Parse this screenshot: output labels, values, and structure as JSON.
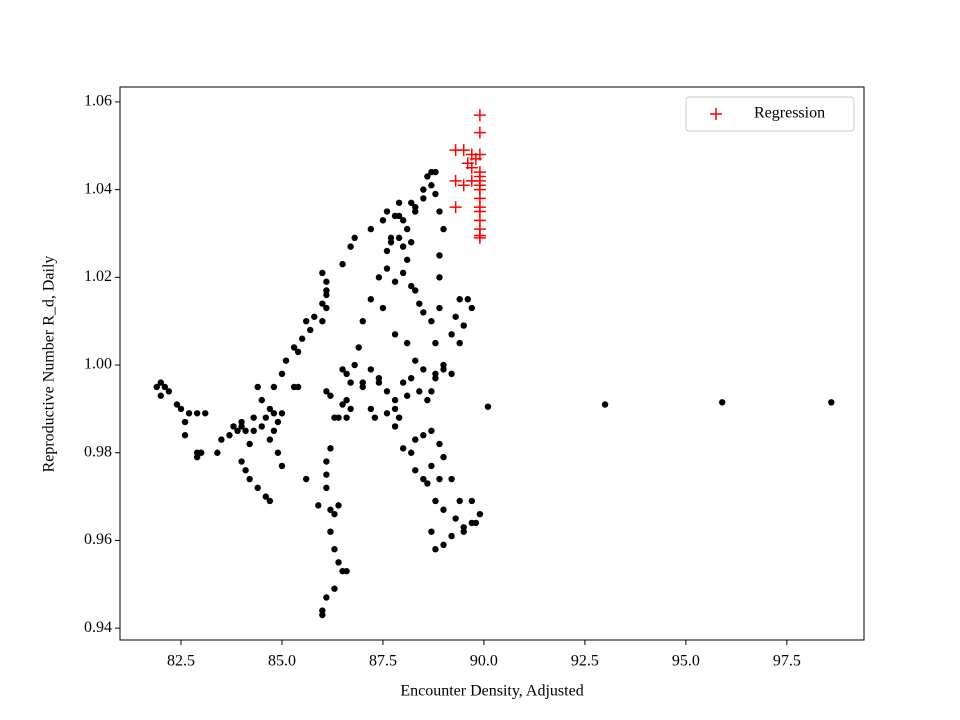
{
  "chart_data": {
    "type": "scatter",
    "xlabel": "Encounter Density, Adjusted",
    "ylabel": "Reproductive Number R_d, Daily",
    "xlim": [
      80.99,
      99.41
    ],
    "ylim": [
      0.9373,
      1.0634
    ],
    "xticks": [
      82.5,
      {
        "value": 85,
        "label": "85.0"
      },
      87.5,
      {
        "value": 90,
        "label": "90.0"
      },
      92.5,
      {
        "value": 95,
        "label": "95.0"
      },
      97.5
    ],
    "yticks": [
      0.94,
      0.96,
      0.98,
      {
        "value": 1,
        "label": "1.00"
      },
      1.02,
      1.04,
      1.06
    ],
    "legend": "upper right",
    "series": [
      {
        "color": "#000000",
        "marker": "dot",
        "x": [
          81.9,
          82.0,
          82.1,
          82.0,
          82.2,
          82.4,
          82.5,
          82.6,
          82.6,
          82.7,
          82.9,
          83.1,
          82.9,
          82.9,
          83.0,
          83.4,
          83.5,
          83.7,
          83.8,
          83.9,
          84.0,
          84.1,
          84.3,
          84.4,
          84.5,
          84.7,
          84.8,
          85.0,
          85.1,
          85.3,
          85.5,
          85.7,
          85.8,
          86.0,
          86.1,
          86.0,
          86.1,
          86.1,
          86.1,
          86.0,
          85.6,
          85.4,
          85.4,
          85.3,
          85.0,
          84.8,
          84.5,
          84.3,
          84.0,
          84.2,
          84.0,
          84.1,
          84.2,
          84.4,
          84.6,
          84.7,
          85.0,
          84.9,
          84.7,
          84.8,
          84.9,
          84.6,
          86.1,
          86.2,
          86.3,
          86.4,
          86.6,
          86.7,
          86.5,
          86.2,
          86.1,
          86.1,
          86.1,
          85.9,
          86.2,
          86.3,
          86.4,
          86.2,
          86.3,
          86.4,
          86.5,
          86.6,
          86.3,
          86.1,
          86.0,
          86.0,
          85.6,
          86.6,
          87.0,
          86.5,
          86.7,
          86.8,
          87.2,
          87.5,
          87.6,
          87.9,
          88.0,
          88.1,
          88.3,
          88.5,
          88.7,
          88.8,
          88.7,
          88.6,
          88.5,
          88.3,
          88.2,
          87.9,
          87.8,
          87.7,
          87.6,
          87.4,
          87.2,
          87.0,
          86.9,
          86.8,
          86.6,
          86.7,
          87.0,
          87.2,
          87.4,
          87.6,
          87.8,
          87.9,
          87.8,
          87.6,
          88.0,
          88.2,
          88.4,
          88.6,
          88.7,
          88.8,
          89.0,
          89.2,
          89.4,
          89.5,
          89.7,
          89.6,
          89.4,
          89.3,
          89.2,
          88.7,
          88.5,
          88.4,
          88.3,
          88.2,
          88.0,
          88.1,
          88.2,
          88.0,
          87.9,
          87.7,
          87.6,
          87.8,
          87.5,
          87.8,
          88.1,
          88.3,
          88.5,
          88.8,
          89.0,
          88.8,
          88.9,
          88.9,
          88.9,
          89.0,
          88.9,
          88.8,
          88.3,
          88.5,
          88.7,
          88.9,
          89.0,
          88.7,
          88.5,
          88.3,
          88.0,
          88.2,
          88.6,
          88.8,
          89.0,
          89.3,
          89.5,
          89.8,
          89.9,
          89.7,
          89.4,
          89.2,
          88.9,
          88.7,
          88.8,
          89.0,
          89.2,
          89.5,
          89.7,
          90.1,
          93.0,
          95.9,
          98.6,
          87.2,
          87.4,
          87.8,
          88.1,
          87.3,
          86.5
        ],
        "values": [
          0.995,
          0.996,
          0.995,
          0.993,
          0.994,
          0.991,
          0.99,
          0.987,
          0.984,
          0.989,
          0.989,
          0.989,
          0.98,
          0.979,
          0.98,
          0.98,
          0.983,
          0.984,
          0.986,
          0.985,
          0.987,
          0.985,
          0.988,
          0.995,
          0.992,
          0.99,
          0.995,
          0.998,
          1.001,
          1.004,
          1.006,
          1.008,
          1.011,
          1.014,
          1.017,
          1.021,
          1.019,
          1.016,
          1.013,
          1.01,
          1.01,
          1.003,
          0.995,
          0.995,
          0.989,
          0.989,
          0.986,
          0.985,
          0.986,
          0.982,
          0.978,
          0.976,
          0.974,
          0.972,
          0.97,
          0.969,
          0.977,
          0.98,
          0.983,
          0.985,
          0.987,
          0.988,
          0.994,
          0.993,
          0.988,
          0.988,
          0.988,
          0.99,
          0.991,
          0.981,
          0.978,
          0.975,
          0.972,
          0.968,
          0.967,
          0.966,
          0.968,
          0.962,
          0.958,
          0.955,
          0.953,
          0.953,
          0.949,
          0.947,
          0.944,
          0.943,
          0.974,
          0.992,
          0.995,
          1.023,
          1.027,
          1.029,
          1.031,
          1.033,
          1.035,
          1.034,
          1.033,
          1.031,
          1.035,
          1.038,
          1.041,
          1.044,
          1.044,
          1.043,
          1.04,
          1.036,
          1.037,
          1.037,
          1.034,
          1.029,
          1.026,
          1.02,
          1.015,
          1.01,
          1.004,
          1.0,
          0.998,
          0.996,
          0.996,
          0.999,
          0.996,
          0.994,
          0.99,
          0.988,
          0.986,
          0.989,
          0.996,
          0.997,
          0.994,
          0.992,
          0.994,
          0.997,
          0.999,
          0.998,
          1.005,
          1.009,
          1.013,
          1.015,
          1.015,
          1.011,
          1.007,
          1.01,
          1.012,
          1.014,
          1.017,
          1.018,
          1.021,
          1.024,
          1.028,
          1.027,
          1.029,
          1.028,
          1.022,
          1.019,
          1.013,
          1.007,
          1.005,
          1.001,
          0.999,
          0.998,
          1.0,
          1.005,
          1.013,
          1.02,
          1.025,
          1.031,
          1.035,
          1.039,
          0.983,
          0.984,
          0.985,
          0.982,
          0.979,
          0.977,
          0.974,
          0.976,
          0.981,
          0.98,
          0.973,
          0.969,
          0.967,
          0.965,
          0.963,
          0.964,
          0.966,
          0.969,
          0.969,
          0.974,
          0.974,
          0.962,
          0.958,
          0.959,
          0.961,
          0.962,
          0.964,
          0.9905,
          0.991,
          0.9915,
          0.9915,
          0.99,
          0.997,
          0.992,
          0.993,
          0.988,
          0.999
        ]
      },
      {
        "name": "Regression",
        "color": "#ff0000",
        "marker": "plus",
        "x": [
          89.9,
          89.9,
          89.3,
          89.5,
          89.7,
          89.8,
          89.9,
          89.6,
          89.7,
          89.9,
          89.9,
          89.9,
          89.9,
          89.3,
          89.5,
          89.7,
          89.9,
          89.9,
          89.9,
          89.9,
          89.3,
          89.9,
          89.9,
          89.9,
          89.9
        ],
        "values": [
          1.057,
          1.053,
          1.049,
          1.049,
          1.048,
          1.047,
          1.048,
          1.046,
          1.045,
          1.044,
          1.043,
          1.042,
          1.041,
          1.042,
          1.041,
          1.042,
          1.04,
          1.038,
          1.036,
          1.035,
          1.036,
          1.033,
          1.031,
          1.029,
          1.0295
        ]
      }
    ]
  }
}
